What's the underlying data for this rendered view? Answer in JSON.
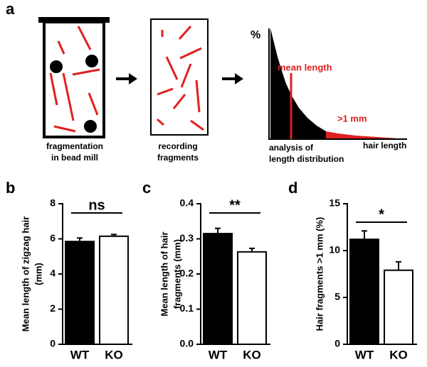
{
  "diagram": {
    "panel": "a",
    "step1_lines": [
      "fragmentation",
      "in bead mill"
    ],
    "step2_lines": [
      "recording",
      "fragments"
    ],
    "step3_lines": [
      "analysis of",
      "length distribution"
    ],
    "y_axis_label": "%",
    "x_axis_label": "hair length",
    "mean_label": "mean length",
    "tail_label": ">1 mm"
  },
  "chart_data": [
    {
      "type": "bar",
      "panel": "b",
      "ylabel": [
        "Mean length of zigzag hair",
        "(mm)"
      ],
      "categories": [
        "WT",
        "KO"
      ],
      "values": [
        5.85,
        6.15
      ],
      "errors": [
        0.2,
        0.1
      ],
      "colors": [
        "#000000",
        "#ffffff"
      ],
      "ylim": [
        0,
        8
      ],
      "yticks": [
        0,
        2,
        4,
        6,
        8
      ],
      "significance": "ns"
    },
    {
      "type": "bar",
      "panel": "c",
      "ylabel": [
        "Mean length of hair",
        "fragments (mm)"
      ],
      "categories": [
        "WT",
        "KO"
      ],
      "values": [
        0.315,
        0.263
      ],
      "errors": [
        0.015,
        0.01
      ],
      "colors": [
        "#000000",
        "#ffffff"
      ],
      "ylim": [
        0,
        0.4
      ],
      "yticks": [
        {
          "value": 0,
          "label": "0.0"
        },
        0.1,
        0.2,
        0.3,
        0.4
      ],
      "significance": "**"
    },
    {
      "type": "bar",
      "panel": "d",
      "ylabel": [
        "Hair fragments >1 mm (%)"
      ],
      "categories": [
        "WT",
        "KO"
      ],
      "values": [
        11.2,
        7.9
      ],
      "errors": [
        0.9,
        0.9
      ],
      "colors": [
        "#000000",
        "#ffffff"
      ],
      "ylim": [
        0,
        15
      ],
      "yticks": [
        0,
        5,
        10,
        15
      ],
      "significance": "*"
    }
  ]
}
